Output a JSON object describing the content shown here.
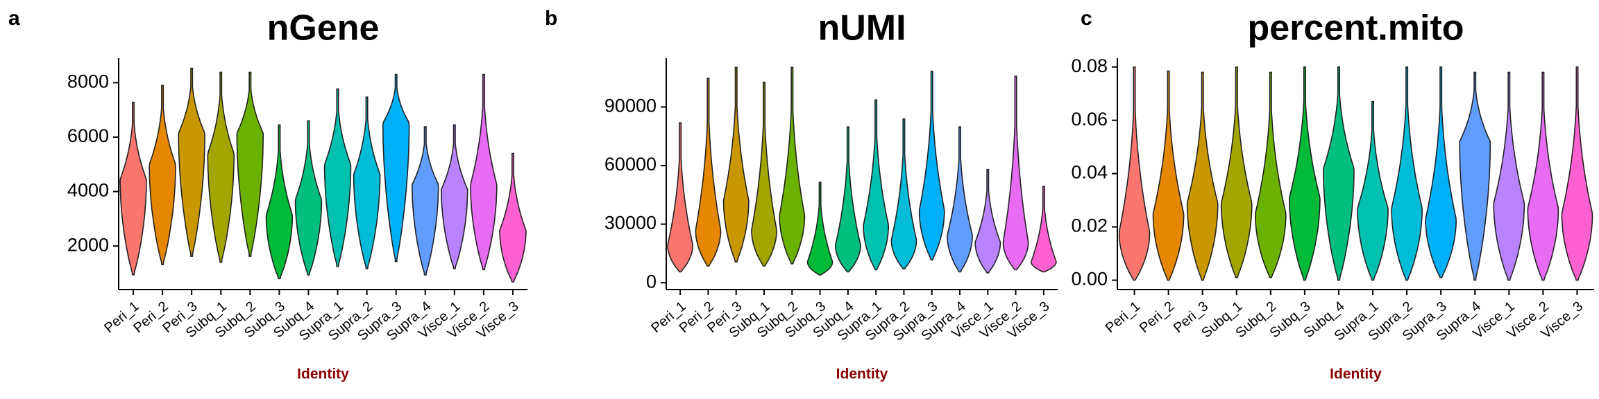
{
  "chart_data": [
    {
      "type": "violin",
      "tag": "a",
      "title": "nGene",
      "x_label": "Identity",
      "categories": [
        "Peri_1",
        "Peri_2",
        "Peri_3",
        "Subq_1",
        "Subq_2",
        "Subq_3",
        "Subq_4",
        "Supra_1",
        "Supra_2",
        "Supra_3",
        "Supra_4",
        "Visce_1",
        "Visce_2",
        "Visce_3"
      ],
      "colors": [
        "#F8766D",
        "#E58700",
        "#C99800",
        "#A3A500",
        "#6BB100",
        "#00BA38",
        "#00BF7D",
        "#00C0AF",
        "#00BCD8",
        "#00B0F6",
        "#619CFF",
        "#B983FF",
        "#E76BF3",
        "#FD61D1"
      ],
      "min": [
        940,
        1320,
        1620,
        1400,
        1620,
        800,
        940,
        1250,
        1170,
        1430,
        940,
        1170,
        1130,
        680
      ],
      "peak": [
        4450,
        5000,
        6150,
        5400,
        6150,
        3130,
        3700,
        5000,
        4640,
        6530,
        4260,
        4080,
        4260,
        2570
      ],
      "max": [
        7280,
        7900,
        8530,
        8380,
        8380,
        6450,
        6600,
        7770,
        7470,
        8300,
        6380,
        6450,
        8300,
        5400
      ],
      "ylim": [
        400,
        8900
      ],
      "yticks": [
        2000,
        4000,
        6000,
        8000
      ]
    },
    {
      "type": "violin",
      "tag": "b",
      "title": "nUMI",
      "x_label": "Identity",
      "categories": [
        "Peri_1",
        "Peri_2",
        "Peri_3",
        "Subq_1",
        "Subq_2",
        "Subq_3",
        "Subq_4",
        "Supra_1",
        "Supra_2",
        "Supra_3",
        "Supra_4",
        "Visce_1",
        "Visce_2",
        "Visce_3"
      ],
      "colors": [
        "#F8766D",
        "#E58700",
        "#C99800",
        "#A3A500",
        "#6BB100",
        "#00BA38",
        "#00BF7D",
        "#00C0AF",
        "#00BCD8",
        "#00B0F6",
        "#619CFF",
        "#B983FF",
        "#E76BF3",
        "#FD61D1"
      ],
      "min": [
        5600,
        8600,
        10700,
        8600,
        9700,
        4000,
        5600,
        6600,
        7100,
        11700,
        5600,
        5100,
        6600,
        5600
      ],
      "peak": [
        19300,
        27000,
        42200,
        27000,
        34600,
        10700,
        19300,
        29500,
        21900,
        37100,
        24400,
        20800,
        20800,
        10700
      ],
      "max": [
        81900,
        104700,
        110300,
        102700,
        110300,
        51400,
        79800,
        93600,
        83900,
        108300,
        79800,
        58000,
        105800,
        49300
      ],
      "ylim": [
        -3500,
        115000
      ],
      "yticks": [
        0,
        30000,
        60000,
        90000
      ]
    },
    {
      "type": "violin",
      "tag": "c",
      "title": "percent.mito",
      "x_label": "Identity",
      "categories": [
        "Peri_1",
        "Peri_2",
        "Peri_3",
        "Subq_1",
        "Subq_2",
        "Subq_3",
        "Subq_4",
        "Supra_1",
        "Supra_2",
        "Supra_3",
        "Supra_4",
        "Visce_1",
        "Visce_2",
        "Visce_3"
      ],
      "colors": [
        "#F8766D",
        "#E58700",
        "#C99800",
        "#A3A500",
        "#6BB100",
        "#00BA38",
        "#00BF7D",
        "#00C0AF",
        "#00BCD8",
        "#00B0F6",
        "#619CFF",
        "#B983FF",
        "#E76BF3",
        "#FD61D1"
      ],
      "min": [
        0,
        0,
        0,
        0.001,
        0.001,
        0,
        0,
        0,
        0,
        0.001,
        0,
        0,
        0,
        0
      ],
      "peak": [
        0.018,
        0.025,
        0.029,
        0.029,
        0.025,
        0.031,
        0.042,
        0.027,
        0.027,
        0.023,
        0.052,
        0.029,
        0.027,
        0.025
      ],
      "max": [
        0.08,
        0.0785,
        0.078,
        0.08,
        0.078,
        0.08,
        0.08,
        0.067,
        0.08,
        0.08,
        0.078,
        0.078,
        0.078,
        0.08
      ],
      "ylim": [
        -0.0035,
        0.0833
      ],
      "yticks": [
        {
          "value": 0,
          "label": "0.00"
        },
        0.02,
        0.04,
        0.06,
        0.08
      ]
    }
  ]
}
